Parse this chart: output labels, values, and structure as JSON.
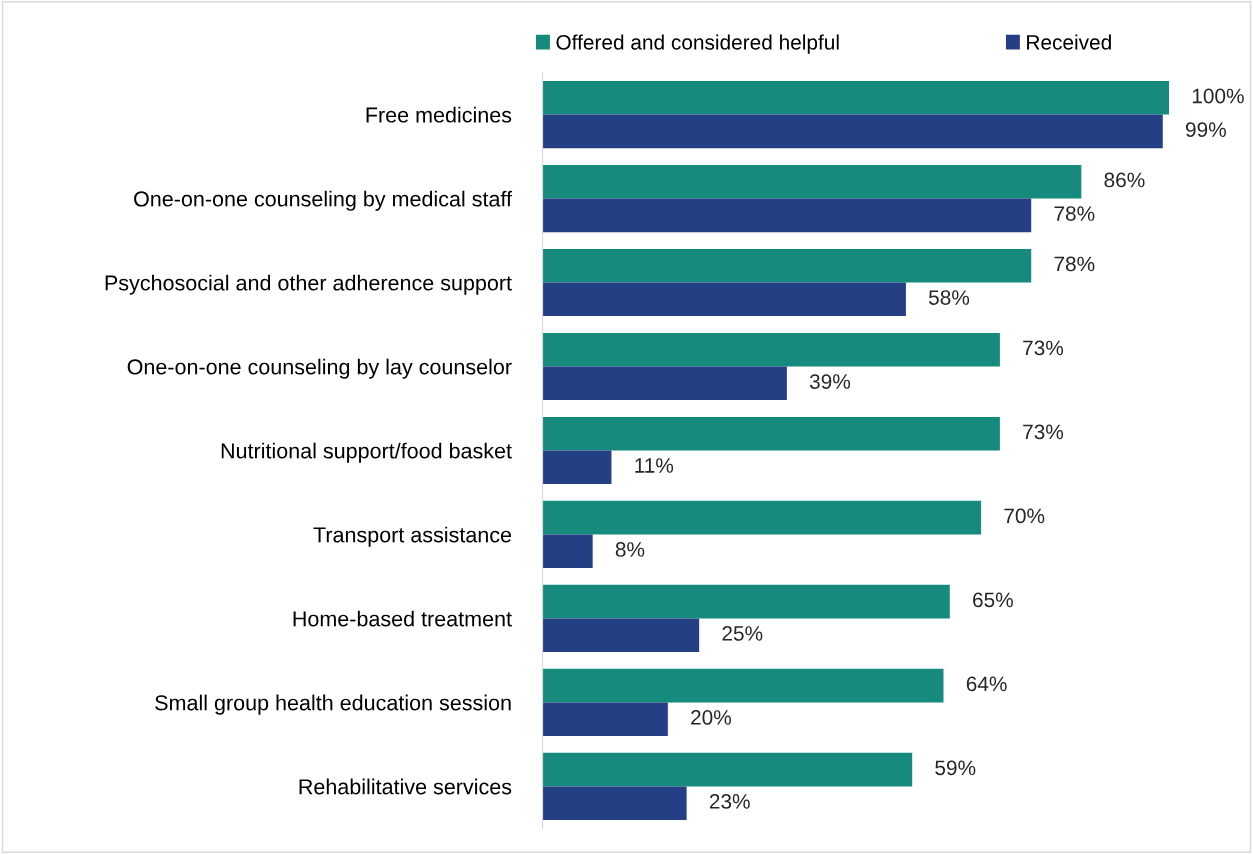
{
  "chart_data": {
    "type": "bar",
    "orientation": "horizontal",
    "legend": "top",
    "grid": false,
    "categories": [
      "Free medicines",
      "One-on-one counseling by medical staff",
      "Psychosocial and other adherence support",
      "One-on-one counseling by lay counselor",
      "Nutritional support/food basket",
      "Transport assistance",
      "Home-based treatment",
      "Small group health education session",
      "Rehabilitative services"
    ],
    "series": [
      {
        "name": "Offered and considered helpful",
        "color": "#178a7e",
        "values": [
          100,
          86,
          78,
          73,
          73,
          70,
          65,
          64,
          59
        ],
        "value_labels": [
          "100%",
          "86%",
          "78%",
          "73%",
          "73%",
          "70%",
          "65%",
          "64%",
          "59%"
        ]
      },
      {
        "name": "Received",
        "color": "#253f85",
        "values": [
          99,
          78,
          58,
          39,
          11,
          8,
          25,
          20,
          23
        ],
        "value_labels": [
          "99%",
          "78%",
          "58%",
          "39%",
          "11%",
          "8%",
          "25%",
          "20%",
          "23%"
        ]
      }
    ]
  }
}
